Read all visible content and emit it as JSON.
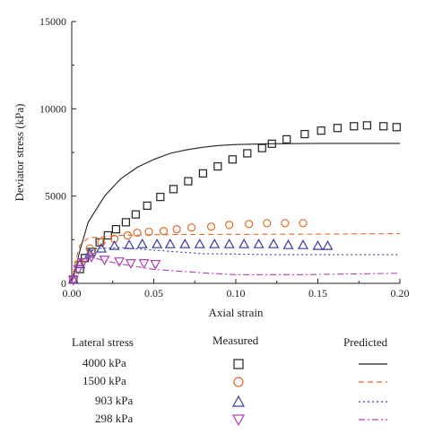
{
  "chart_data": {
    "type": "scatter",
    "xlabel": "Axial strain",
    "ylabel": "Deviator stress (kPa)",
    "xlim": [
      0,
      0.2
    ],
    "ylim": [
      0,
      15000
    ],
    "xticks": [
      "0.00",
      "0.05",
      "0.10",
      "0.15",
      "0.20"
    ],
    "yticks": [
      "0",
      "5000",
      "10000",
      "15000"
    ],
    "grid": false,
    "series": [
      {
        "name": "4000 kPa",
        "marker": "square",
        "color": "#222222",
        "line_style": "solid",
        "measured": [
          [
            0.001,
            220
          ],
          [
            0.005,
            820
          ],
          [
            0.008,
            1450
          ],
          [
            0.012,
            1800
          ],
          [
            0.017,
            2350
          ],
          [
            0.022,
            2750
          ],
          [
            0.027,
            3100
          ],
          [
            0.033,
            3500
          ],
          [
            0.039,
            3950
          ],
          [
            0.046,
            4450
          ],
          [
            0.054,
            4950
          ],
          [
            0.062,
            5400
          ],
          [
            0.071,
            5850
          ],
          [
            0.08,
            6300
          ],
          [
            0.089,
            6700
          ],
          [
            0.098,
            7100
          ],
          [
            0.107,
            7450
          ],
          [
            0.116,
            7750
          ],
          [
            0.122,
            8000
          ],
          [
            0.131,
            8250
          ],
          [
            0.142,
            8550
          ],
          [
            0.152,
            8750
          ],
          [
            0.162,
            8900
          ],
          [
            0.172,
            9000
          ],
          [
            0.18,
            9050
          ],
          [
            0.19,
            9000
          ],
          [
            0.198,
            8950
          ]
        ],
        "predicted": [
          [
            0,
            0
          ],
          [
            0.005,
            1900
          ],
          [
            0.01,
            3500
          ],
          [
            0.02,
            5000
          ],
          [
            0.03,
            6000
          ],
          [
            0.04,
            6650
          ],
          [
            0.05,
            7100
          ],
          [
            0.06,
            7450
          ],
          [
            0.07,
            7650
          ],
          [
            0.08,
            7800
          ],
          [
            0.09,
            7900
          ],
          [
            0.1,
            7950
          ],
          [
            0.12,
            8000
          ],
          [
            0.15,
            8020
          ],
          [
            0.2,
            8020
          ]
        ]
      },
      {
        "name": "1500 kPa",
        "marker": "circle",
        "color": "#e06a2a",
        "line_style": "dashed",
        "measured": [
          [
            0.001,
            250
          ],
          [
            0.005,
            1200
          ],
          [
            0.011,
            2000
          ],
          [
            0.018,
            2350
          ],
          [
            0.026,
            2550
          ],
          [
            0.034,
            2750
          ],
          [
            0.04,
            2900
          ],
          [
            0.047,
            2950
          ],
          [
            0.056,
            3000
          ],
          [
            0.064,
            3100
          ],
          [
            0.073,
            3200
          ],
          [
            0.085,
            3250
          ],
          [
            0.096,
            3350
          ],
          [
            0.108,
            3400
          ],
          [
            0.119,
            3450
          ],
          [
            0.13,
            3450
          ],
          [
            0.141,
            3450
          ]
        ],
        "predicted": [
          [
            0,
            0
          ],
          [
            0.002,
            1200
          ],
          [
            0.005,
            2200
          ],
          [
            0.01,
            2600
          ],
          [
            0.03,
            2750
          ],
          [
            0.05,
            2790
          ],
          [
            0.1,
            2810
          ],
          [
            0.15,
            2820
          ],
          [
            0.2,
            2850
          ]
        ]
      },
      {
        "name": "903 kPa",
        "marker": "triangle",
        "color": "#3a3aa0",
        "line_style": "dashed",
        "measured": [
          [
            0.001,
            220
          ],
          [
            0.005,
            1100
          ],
          [
            0.011,
            1700
          ],
          [
            0.018,
            2000
          ],
          [
            0.026,
            2150
          ],
          [
            0.035,
            2200
          ],
          [
            0.043,
            2250
          ],
          [
            0.052,
            2250
          ],
          [
            0.06,
            2250
          ],
          [
            0.069,
            2250
          ],
          [
            0.078,
            2250
          ],
          [
            0.087,
            2250
          ],
          [
            0.096,
            2250
          ],
          [
            0.105,
            2250
          ],
          [
            0.114,
            2250
          ],
          [
            0.123,
            2250
          ],
          [
            0.132,
            2200
          ],
          [
            0.141,
            2200
          ],
          [
            0.15,
            2150
          ],
          [
            0.156,
            2150
          ]
        ],
        "predicted": [
          [
            0,
            0
          ],
          [
            0.003,
            1100
          ],
          [
            0.008,
            1700
          ],
          [
            0.015,
            2000
          ],
          [
            0.03,
            2050
          ],
          [
            0.05,
            1900
          ],
          [
            0.08,
            1700
          ],
          [
            0.12,
            1650
          ],
          [
            0.16,
            1650
          ],
          [
            0.2,
            1650
          ]
        ]
      },
      {
        "name": "298 kPa",
        "marker": "triangle-down",
        "color": "#b040b8",
        "line_style": "dashdot",
        "measured": [
          [
            0.001,
            180
          ],
          [
            0.004,
            800
          ],
          [
            0.007,
            1200
          ],
          [
            0.012,
            1500
          ],
          [
            0.02,
            1350
          ],
          [
            0.029,
            1250
          ],
          [
            0.036,
            1150
          ],
          [
            0.044,
            1150
          ],
          [
            0.051,
            1100
          ]
        ],
        "predicted": [
          [
            0,
            0
          ],
          [
            0.003,
            900
          ],
          [
            0.008,
            1400
          ],
          [
            0.012,
            1500
          ],
          [
            0.02,
            1300
          ],
          [
            0.03,
            1100
          ],
          [
            0.05,
            800
          ],
          [
            0.08,
            600
          ],
          [
            0.1,
            500
          ],
          [
            0.14,
            500
          ],
          [
            0.18,
            550
          ],
          [
            0.2,
            580
          ]
        ]
      }
    ]
  },
  "legend": {
    "header_lateral": "Lateral stress",
    "header_measured": "Measured",
    "header_predicted": "Predicted"
  }
}
